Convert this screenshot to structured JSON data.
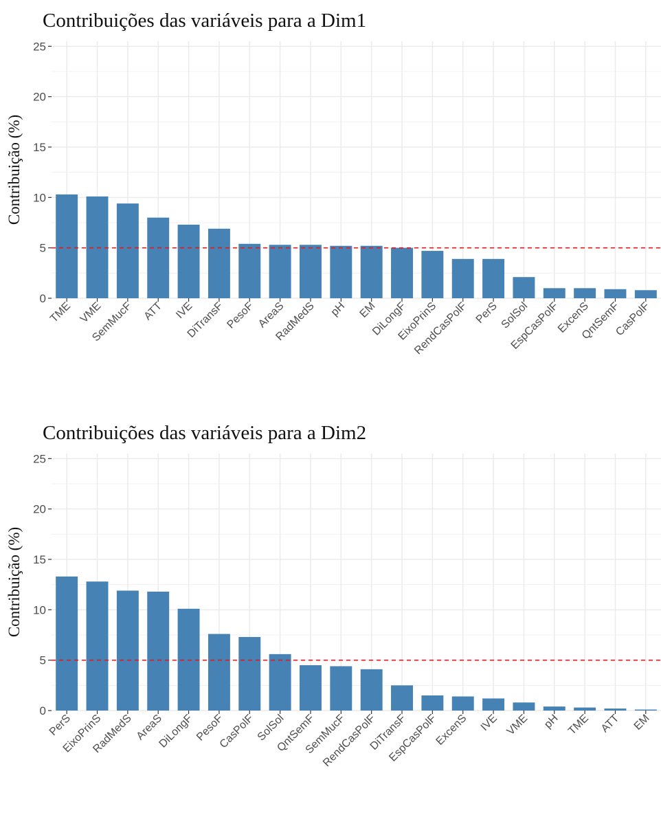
{
  "chart_data": [
    {
      "type": "bar",
      "title": "Contribuições das variáveis para a Dim1",
      "xlabel": "",
      "ylabel": "Contribuição (%)",
      "ylim": [
        0,
        25.5
      ],
      "yticks": [
        0,
        5,
        10,
        15,
        20,
        25
      ],
      "grid": true,
      "reference_line": {
        "y": 5,
        "color": "#e41a1c",
        "style": "dashed"
      },
      "bar_color": "#4682b4",
      "categories": [
        "TME",
        "VME",
        "SemMucF",
        "ATT",
        "IVE",
        "DiTransF",
        "PesoF",
        "AreaS",
        "RadMedS",
        "pH",
        "EM",
        "DiLongF",
        "EixoPrinS",
        "RendCasPolF",
        "PerS",
        "SolSol",
        "EspCasPolF",
        "ExcenS",
        "QntSemF",
        "CasPolF"
      ],
      "values": [
        10.3,
        10.1,
        9.4,
        8.0,
        7.3,
        6.9,
        5.4,
        5.3,
        5.3,
        5.2,
        5.2,
        5.0,
        4.7,
        3.9,
        3.9,
        2.1,
        1.0,
        1.0,
        0.9,
        0.8
      ]
    },
    {
      "type": "bar",
      "title": "Contribuições das variáveis para a Dim2",
      "xlabel": "",
      "ylabel": "Contribuição (%)",
      "ylim": [
        0,
        25.5
      ],
      "yticks": [
        0,
        5,
        10,
        15,
        20,
        25
      ],
      "grid": true,
      "reference_line": {
        "y": 5,
        "color": "#e41a1c",
        "style": "dashed"
      },
      "bar_color": "#4682b4",
      "categories": [
        "PerS",
        "EixoPrinS",
        "RadMedS",
        "AreaS",
        "DiLongF",
        "PesoF",
        "CasPolF",
        "SolSol",
        "QntSemF",
        "SemMucF",
        "RendCasPolF",
        "DiTransF",
        "EspCasPolF",
        "ExcenS",
        "IVE",
        "VME",
        "pH",
        "TME",
        "ATT",
        "EM"
      ],
      "values": [
        13.3,
        12.8,
        11.9,
        11.8,
        10.1,
        7.6,
        7.3,
        5.6,
        4.5,
        4.4,
        4.1,
        2.5,
        1.5,
        1.4,
        1.2,
        0.8,
        0.4,
        0.3,
        0.2,
        0.1
      ]
    }
  ]
}
